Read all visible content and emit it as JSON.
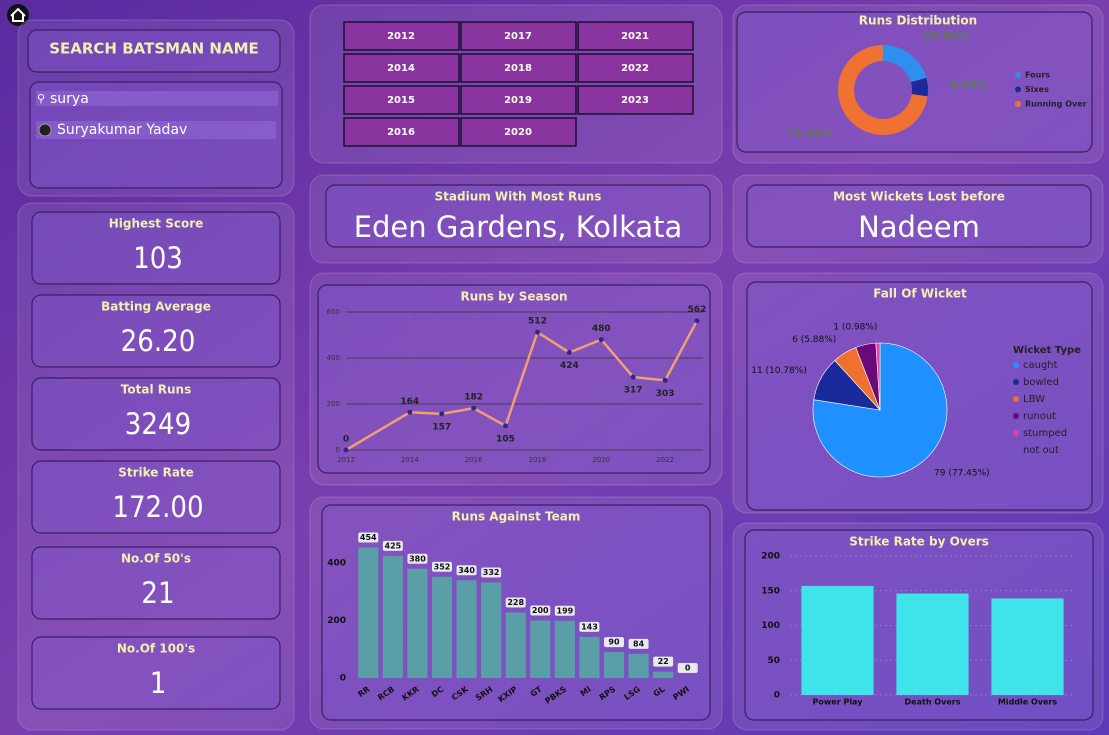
{
  "search": {
    "title": "SEARCH BATSMAN NAME",
    "query": "surya",
    "option": "Suryakumar Yadav"
  },
  "years": [
    "2012",
    "2017",
    "2021",
    "2014",
    "2018",
    "2022",
    "2015",
    "2019",
    "2023",
    "2016",
    "2020"
  ],
  "kpis": [
    {
      "label": "Highest Score",
      "value": "103"
    },
    {
      "label": "Batting Average",
      "value": "26.20"
    },
    {
      "label": "Total Runs",
      "value": "3249"
    },
    {
      "label": "Strike Rate",
      "value": "172.00"
    },
    {
      "label": "No.Of 50's",
      "value": "21"
    },
    {
      "label": "No.Of 100's",
      "value": "1"
    }
  ],
  "cards": [
    {
      "title": "Stadium With Most Runs",
      "value": "Eden Gardens, Kolkata"
    },
    {
      "title": "Most Wickets Lost before",
      "value": "Nadeem"
    }
  ],
  "chart_data": [
    {
      "type": "donut",
      "title": "Runs Distribution",
      "categories": [
        "Fours",
        "Sixes",
        "Running Over"
      ],
      "values": [
        20.86,
        6.69,
        73.45
      ],
      "value_labels": [
        "20.86%",
        "6.69%",
        "73.45%"
      ],
      "colors": [
        "#2e8ff0",
        "#1c2a9c",
        "#f07232"
      ],
      "legend": "right"
    },
    {
      "type": "line",
      "title": "Runs by Season",
      "x": [
        2012,
        2014,
        2015,
        2016,
        2017,
        2018,
        2019,
        2020,
        2021,
        2022,
        2023
      ],
      "values": [
        0,
        164,
        157,
        182,
        105,
        512,
        424,
        480,
        317,
        303,
        562
      ],
      "color": "#f0a070",
      "marker_color": "#2a2a8a",
      "xlim": [
        2012,
        2023
      ],
      "xticks": [
        2012,
        2014,
        2016,
        2018,
        2020,
        2022
      ],
      "ylim": [
        0,
        600
      ],
      "yticks": [
        0,
        200,
        400,
        600
      ],
      "grid": true
    },
    {
      "type": "pie",
      "title": "Fall Of Wicket",
      "legend_title": "Wicket Type",
      "categories": [
        "caught",
        "bowled",
        "LBW",
        "runout",
        "stumped",
        "not out"
      ],
      "values": [
        79,
        11,
        6,
        5,
        1,
        0
      ],
      "value_labels": [
        "79 (77.45%)",
        "11 (10.78%)",
        "6 (5.88%)",
        null,
        "1 (0.98%)",
        null
      ],
      "colors": [
        "#1e90ff",
        "#1a2a9a",
        "#f07030",
        "#6a0a7a",
        "#e040b0",
        "#6a5ac0"
      ],
      "legend": "right"
    },
    {
      "type": "bar",
      "title": "Runs Against Team",
      "categories": [
        "RR",
        "RCB",
        "KKR",
        "DC",
        "CSK",
        "SRH",
        "KXIP",
        "GT",
        "PBKS",
        "MI",
        "RPS",
        "LSG",
        "GL",
        "PWI"
      ],
      "values": [
        454,
        425,
        380,
        352,
        340,
        332,
        228,
        200,
        199,
        143,
        90,
        84,
        22,
        0
      ],
      "color": "#5a9ea8",
      "ylim": [
        0,
        480
      ],
      "yticks": [
        0,
        200,
        400
      ],
      "data_labels": true,
      "grid": false
    },
    {
      "type": "bar",
      "title": "Strike Rate by Overs",
      "categories": [
        "Power Play",
        "Death Overs",
        "Middle Overs"
      ],
      "values": [
        157,
        146,
        139
      ],
      "color": "#3ee4ea",
      "ylim": [
        0,
        200
      ],
      "yticks": [
        0,
        50,
        100,
        150,
        200
      ],
      "data_labels": false,
      "grid": true
    }
  ]
}
